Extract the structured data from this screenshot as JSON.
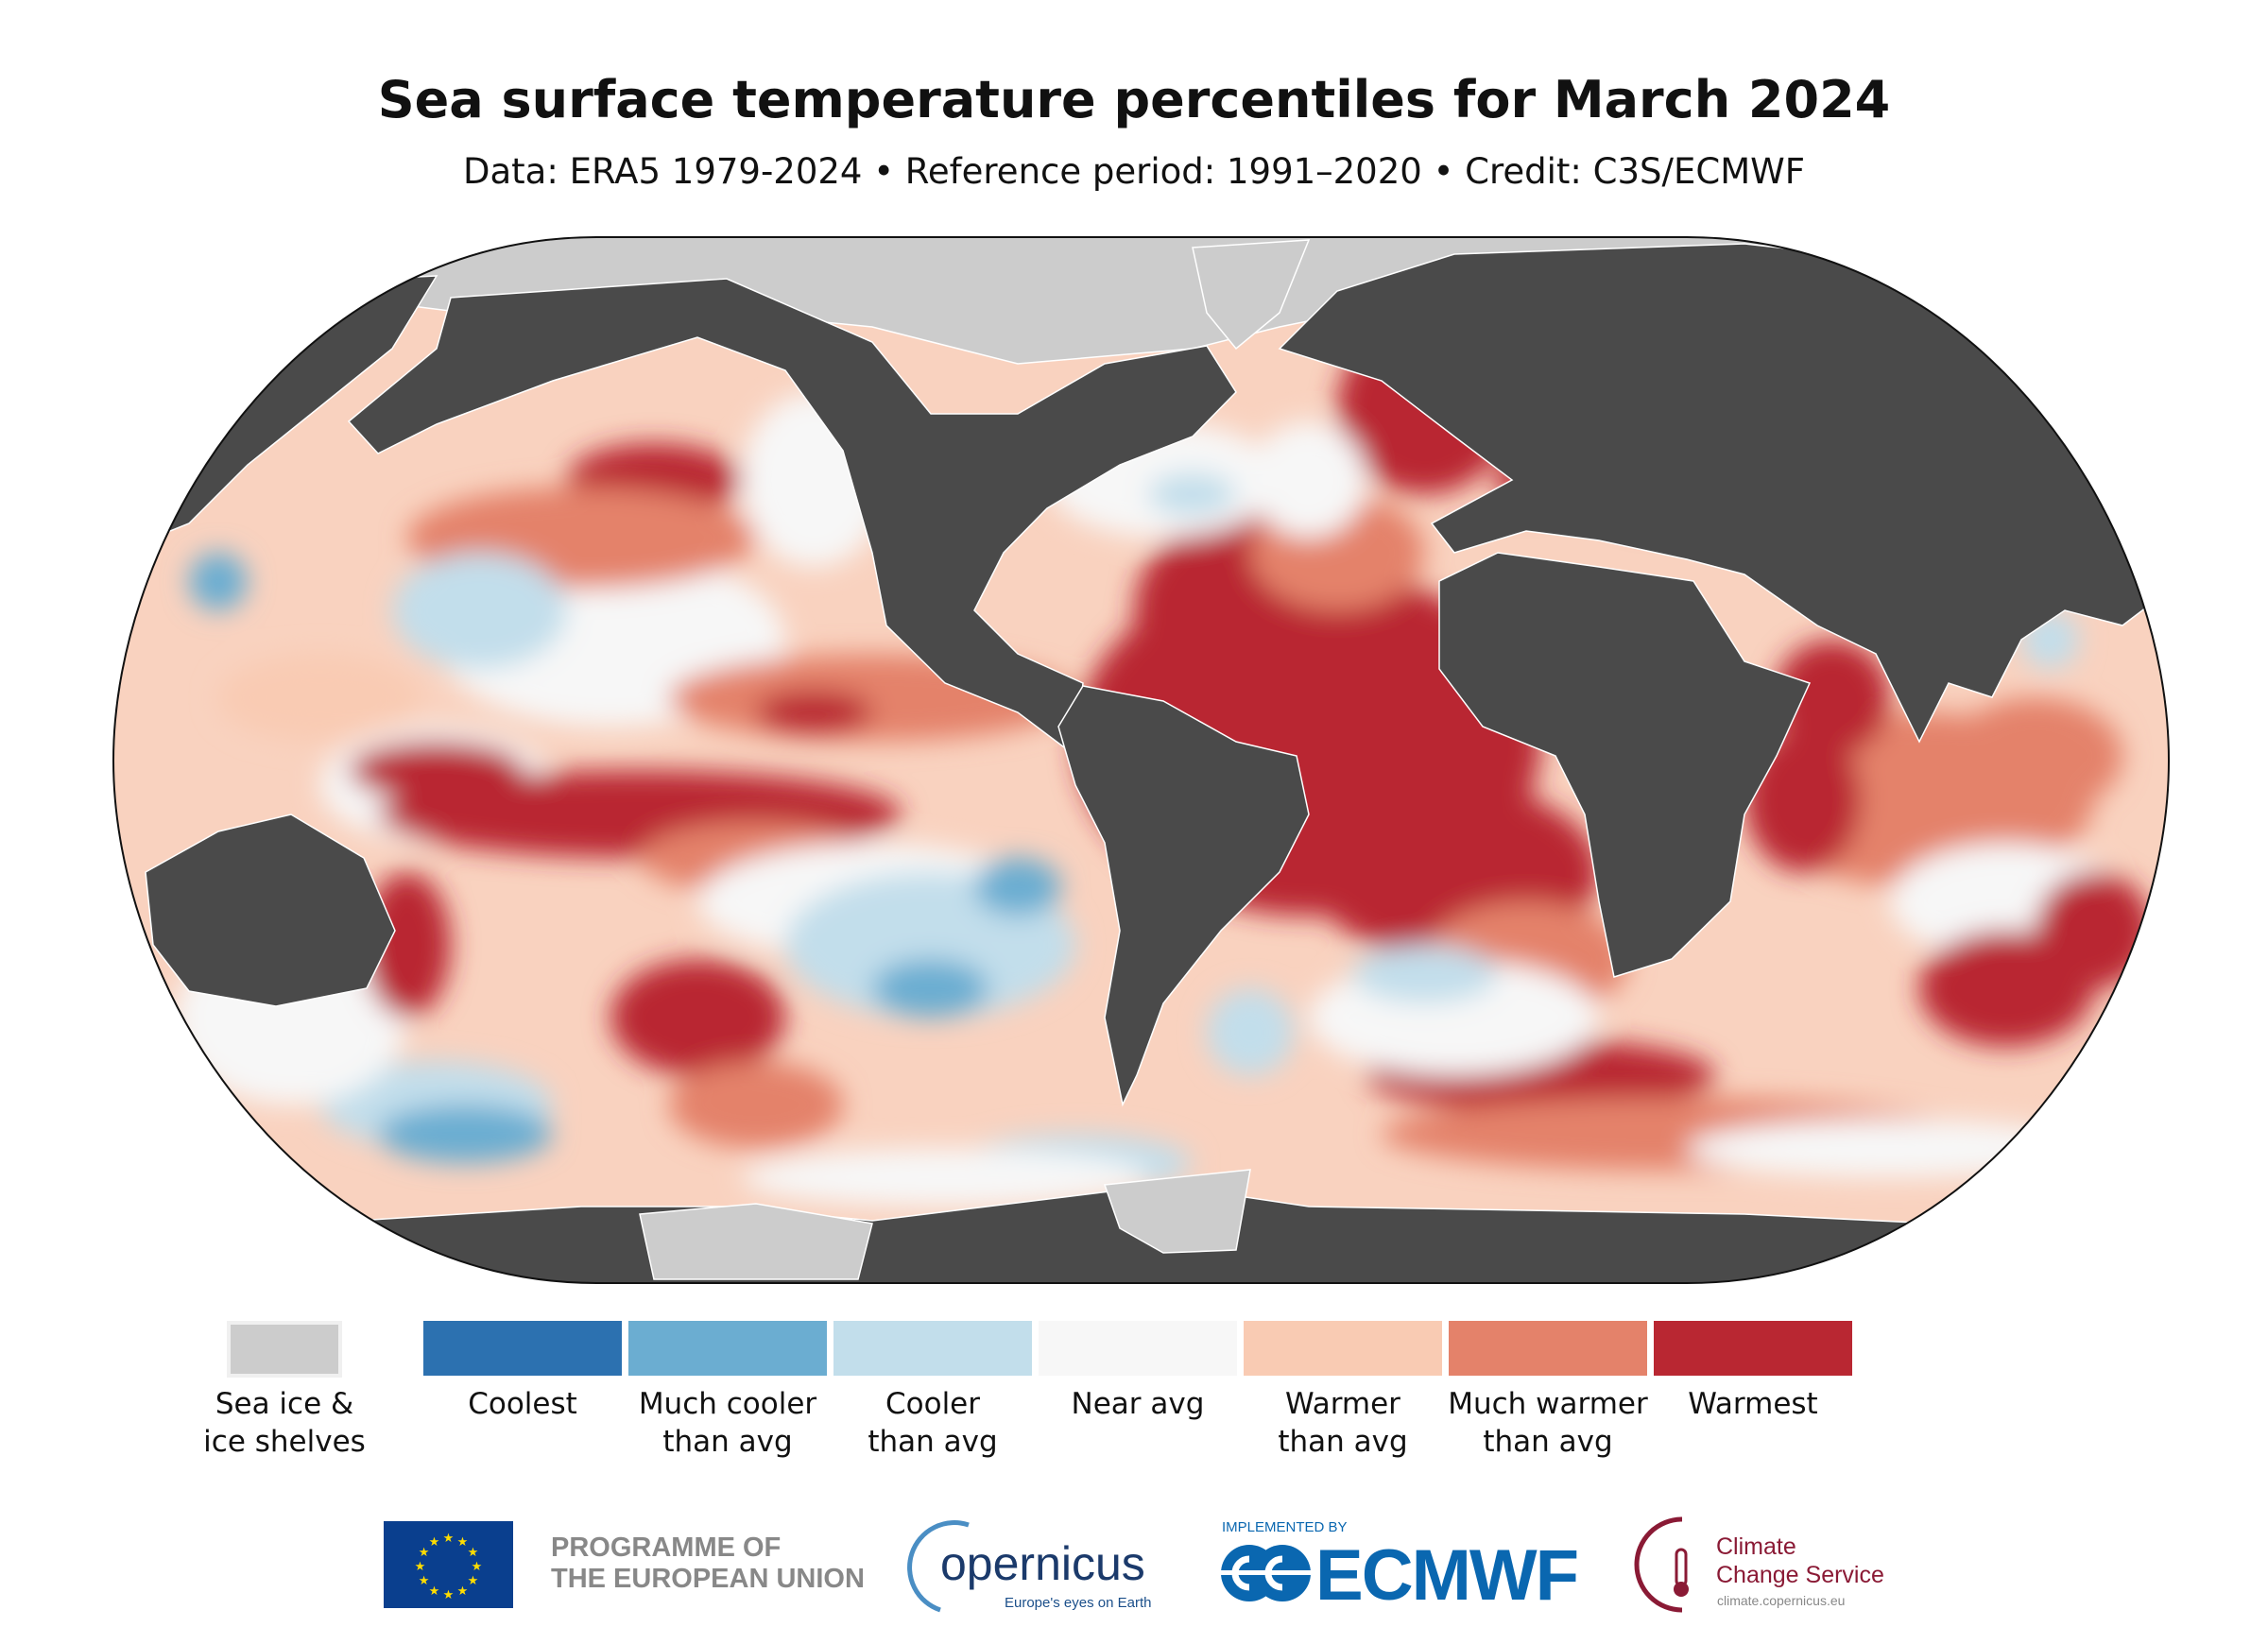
{
  "header": {
    "title": "Sea surface temperature percentiles for March 2024",
    "subtitle": "Data: ERA5 1979-2024 • Reference period: 1991–2020 • Credit: C3S/ECMWF"
  },
  "map": {
    "projection": "Robinson",
    "land_color": "#4a4a4a",
    "sea_ice_color": "#cccccc"
  },
  "legend": {
    "sea_ice": {
      "label_line1": "Sea ice &",
      "label_line2": "ice shelves",
      "color": "#cccccc"
    },
    "items": [
      {
        "line1": "Coolest",
        "line2": "",
        "color": "#2c71b0"
      },
      {
        "line1": "Much cooler",
        "line2": "than avg",
        "color": "#6badd1"
      },
      {
        "line1": "Cooler",
        "line2": "than avg",
        "color": "#c2deeb"
      },
      {
        "line1": "Near avg",
        "line2": "",
        "color": "#f7f7f7"
      },
      {
        "line1": "Warmer",
        "line2": "than avg",
        "color": "#f9cbb3"
      },
      {
        "line1": "Much warmer",
        "line2": "than avg",
        "color": "#e4826a"
      },
      {
        "line1": "Warmest",
        "line2": "",
        "color": "#b92732"
      }
    ]
  },
  "footer": {
    "eu_line1": "PROGRAMME OF",
    "eu_line2": "THE EUROPEAN UNION",
    "copernicus": "opernicus",
    "copernicus_tagline": "Europe's eyes on Earth",
    "implemented_by": "IMPLEMENTED BY",
    "ecmwf": "ECMWF",
    "c3s_line1": "Climate",
    "c3s_line2": "Change Service",
    "c3s_url": "climate.copernicus.eu"
  }
}
